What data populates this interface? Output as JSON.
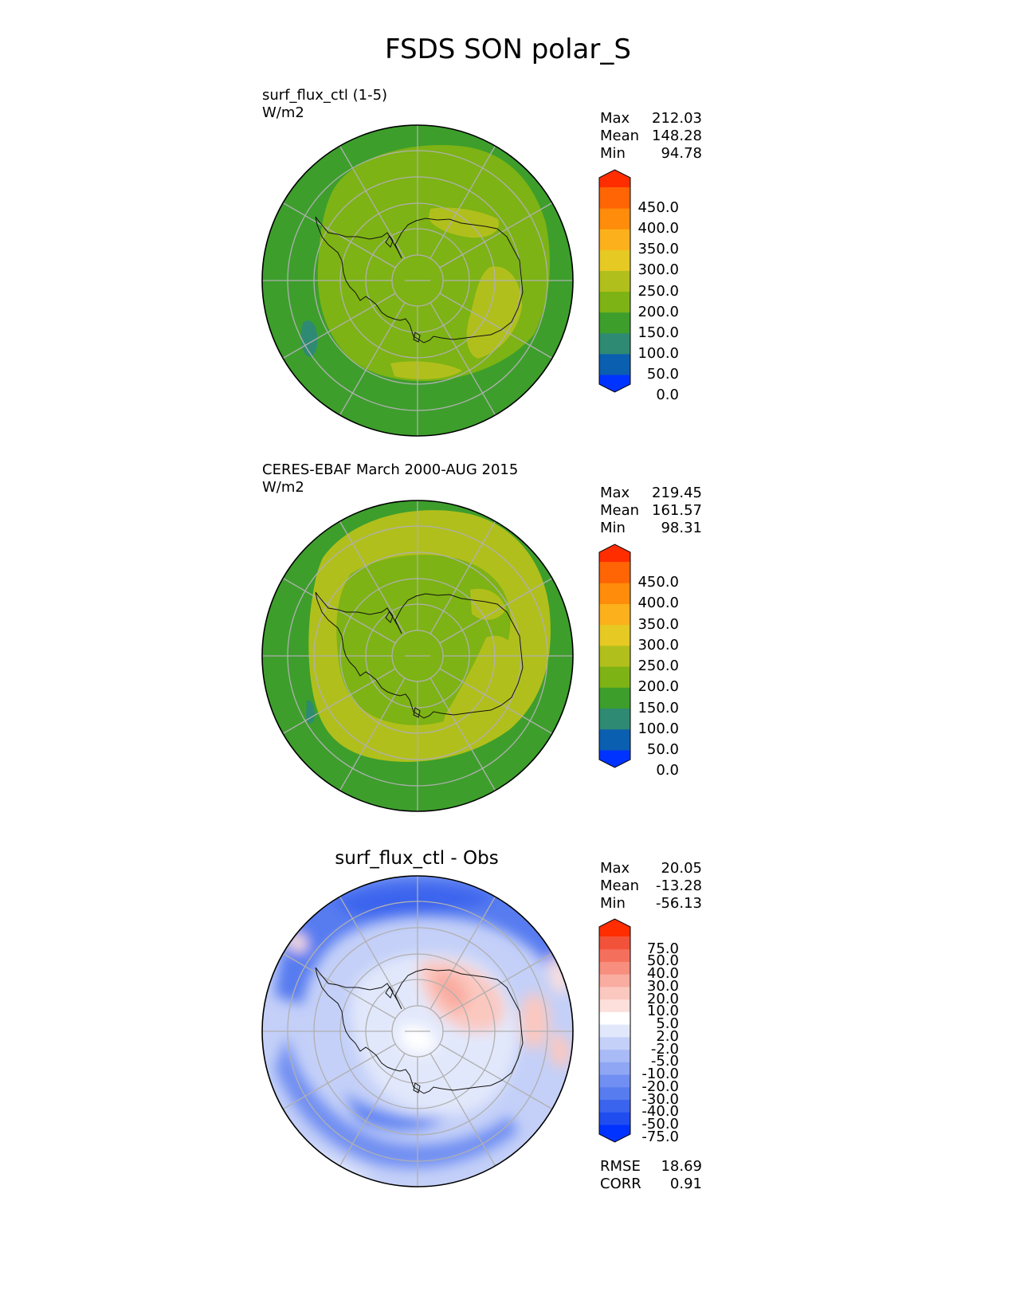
{
  "title": "FSDS SON polar_S",
  "panels": [
    {
      "id": "test",
      "title_line1": "surf_flux_ctl (1-5)",
      "title_line2": "W/m2",
      "stats": [
        {
          "label": "Max",
          "value": "212.03"
        },
        {
          "label": "Mean",
          "value": "148.28"
        },
        {
          "label": "Min",
          "value": "94.78"
        }
      ],
      "colorbar": {
        "labels": [
          "450.0",
          "400.0",
          "350.0",
          "300.0",
          "250.0",
          "200.0",
          "150.0",
          "100.0",
          "50.0",
          "0.0"
        ],
        "colors": [
          "#0033ff",
          "#0a5fb0",
          "#2e8a72",
          "#3d9e2c",
          "#7db314",
          "#b1bf1c",
          "#e6c922",
          "#fcb11c",
          "#ff8c0a",
          "#ff6405",
          "#ff2d00"
        ]
      }
    },
    {
      "id": "reference",
      "title_line1": "CERES-EBAF March 2000-AUG 2015",
      "title_line2": "W/m2",
      "stats": [
        {
          "label": "Max",
          "value": "219.45"
        },
        {
          "label": "Mean",
          "value": "161.57"
        },
        {
          "label": "Min",
          "value": "98.31"
        }
      ],
      "colorbar": {
        "labels": [
          "450.0",
          "400.0",
          "350.0",
          "300.0",
          "250.0",
          "200.0",
          "150.0",
          "100.0",
          "50.0",
          "0.0"
        ],
        "colors": [
          "#0033ff",
          "#0a5fb0",
          "#2e8a72",
          "#3d9e2c",
          "#7db314",
          "#b1bf1c",
          "#e6c922",
          "#fcb11c",
          "#ff8c0a",
          "#ff6405",
          "#ff2d00"
        ]
      }
    },
    {
      "id": "diff",
      "title": "surf_flux_ctl - Obs",
      "stats": [
        {
          "label": "Max",
          "value": "20.05"
        },
        {
          "label": "Mean",
          "value": "-13.28"
        },
        {
          "label": "Min",
          "value": "-56.13"
        }
      ],
      "metrics": [
        {
          "label": "RMSE",
          "value": "18.69"
        },
        {
          "label": "CORR",
          "value": "0.91"
        }
      ],
      "colorbar": {
        "labels": [
          "75.0",
          "50.0",
          "40.0",
          "30.0",
          "20.0",
          "10.0",
          "5.0",
          "2.0",
          "-2.0",
          "-5.0",
          "-10.0",
          "-20.0",
          "-30.0",
          "-40.0",
          "-50.0",
          "-75.0"
        ],
        "colors": [
          "#0033ff",
          "#1f4df0",
          "#3a63ee",
          "#567cf0",
          "#718ff2",
          "#8fa6f4",
          "#a9bbf6",
          "#c4d0f8",
          "#e2e8fb",
          "#ffffff",
          "#fde0dc",
          "#fbc8c0",
          "#f9aca0",
          "#f78e7e",
          "#f5705c",
          "#f3523a",
          "#ff2d00"
        ]
      }
    }
  ],
  "chart_data": [
    {
      "type": "heatmap",
      "title": "surf_flux_ctl (1-5)",
      "units": "W/m2",
      "projection": "south polar stereographic",
      "levels": [
        0,
        50,
        100,
        150,
        200,
        250,
        300,
        350,
        400,
        450
      ],
      "max": 212.03,
      "mean": 148.28,
      "min": 94.78,
      "regions": [
        {
          "region": "outer ocean ring",
          "range": [
            100,
            150
          ]
        },
        {
          "region": "subpolar band and Antarctic interior",
          "range": [
            150,
            200
          ]
        },
        {
          "region": "East Antarctic coast / Ross-Weddell patches",
          "range": [
            200,
            250
          ]
        },
        {
          "region": "small patch south of South America",
          "range": [
            50,
            100
          ]
        }
      ]
    },
    {
      "type": "heatmap",
      "title": "CERES-EBAF March 2000-AUG 2015",
      "units": "W/m2",
      "projection": "south polar stereographic",
      "levels": [
        0,
        50,
        100,
        150,
        200,
        250,
        300,
        350,
        400,
        450
      ],
      "max": 219.45,
      "mean": 161.57,
      "min": 98.31,
      "regions": [
        {
          "region": "outer ocean ring",
          "range": [
            100,
            150
          ]
        },
        {
          "region": "subpolar band and Antarctic interior",
          "range": [
            150,
            200
          ]
        },
        {
          "region": "sea-ice zone ring and East Antarctic coast",
          "range": [
            200,
            250
          ]
        }
      ]
    },
    {
      "type": "heatmap",
      "title": "surf_flux_ctl - Obs",
      "units": "W/m2",
      "projection": "south polar stereographic",
      "levels": [
        -75,
        -50,
        -40,
        -30,
        -20,
        -10,
        -5,
        -2,
        2,
        5,
        10,
        20,
        30,
        40,
        50,
        75
      ],
      "max": 20.05,
      "mean": -13.28,
      "min": -56.13,
      "rmse": 18.69,
      "corr": 0.91,
      "regions": [
        {
          "region": "subpolar ocean band",
          "range": [
            -50,
            -20
          ]
        },
        {
          "region": "West Antarctica and outer ocean",
          "range": [
            -20,
            -5
          ]
        },
        {
          "region": "East Antarctic plateau",
          "range": [
            5,
            20
          ]
        },
        {
          "region": "Antarctic coastline patches",
          "range": [
            2,
            10
          ]
        }
      ]
    }
  ]
}
